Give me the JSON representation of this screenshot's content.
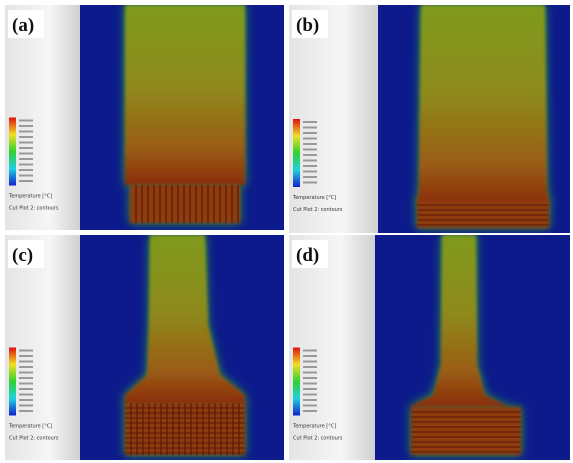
{
  "panels": [
    {
      "label": "(a)",
      "legend_title": "Temperature [°C]",
      "caption": "Cut Plot 2: contours"
    },
    {
      "label": "(b)",
      "legend_title": "Temperature [°C]",
      "caption": "Cut Plot 2: contours"
    },
    {
      "label": "(c)",
      "legend_title": "Temperature [°C]",
      "caption": "Cut Plot 2: contours"
    },
    {
      "label": "(d)",
      "legend_title": "Temperature [°C]",
      "caption": "Cut Plot 2: contours"
    }
  ]
}
